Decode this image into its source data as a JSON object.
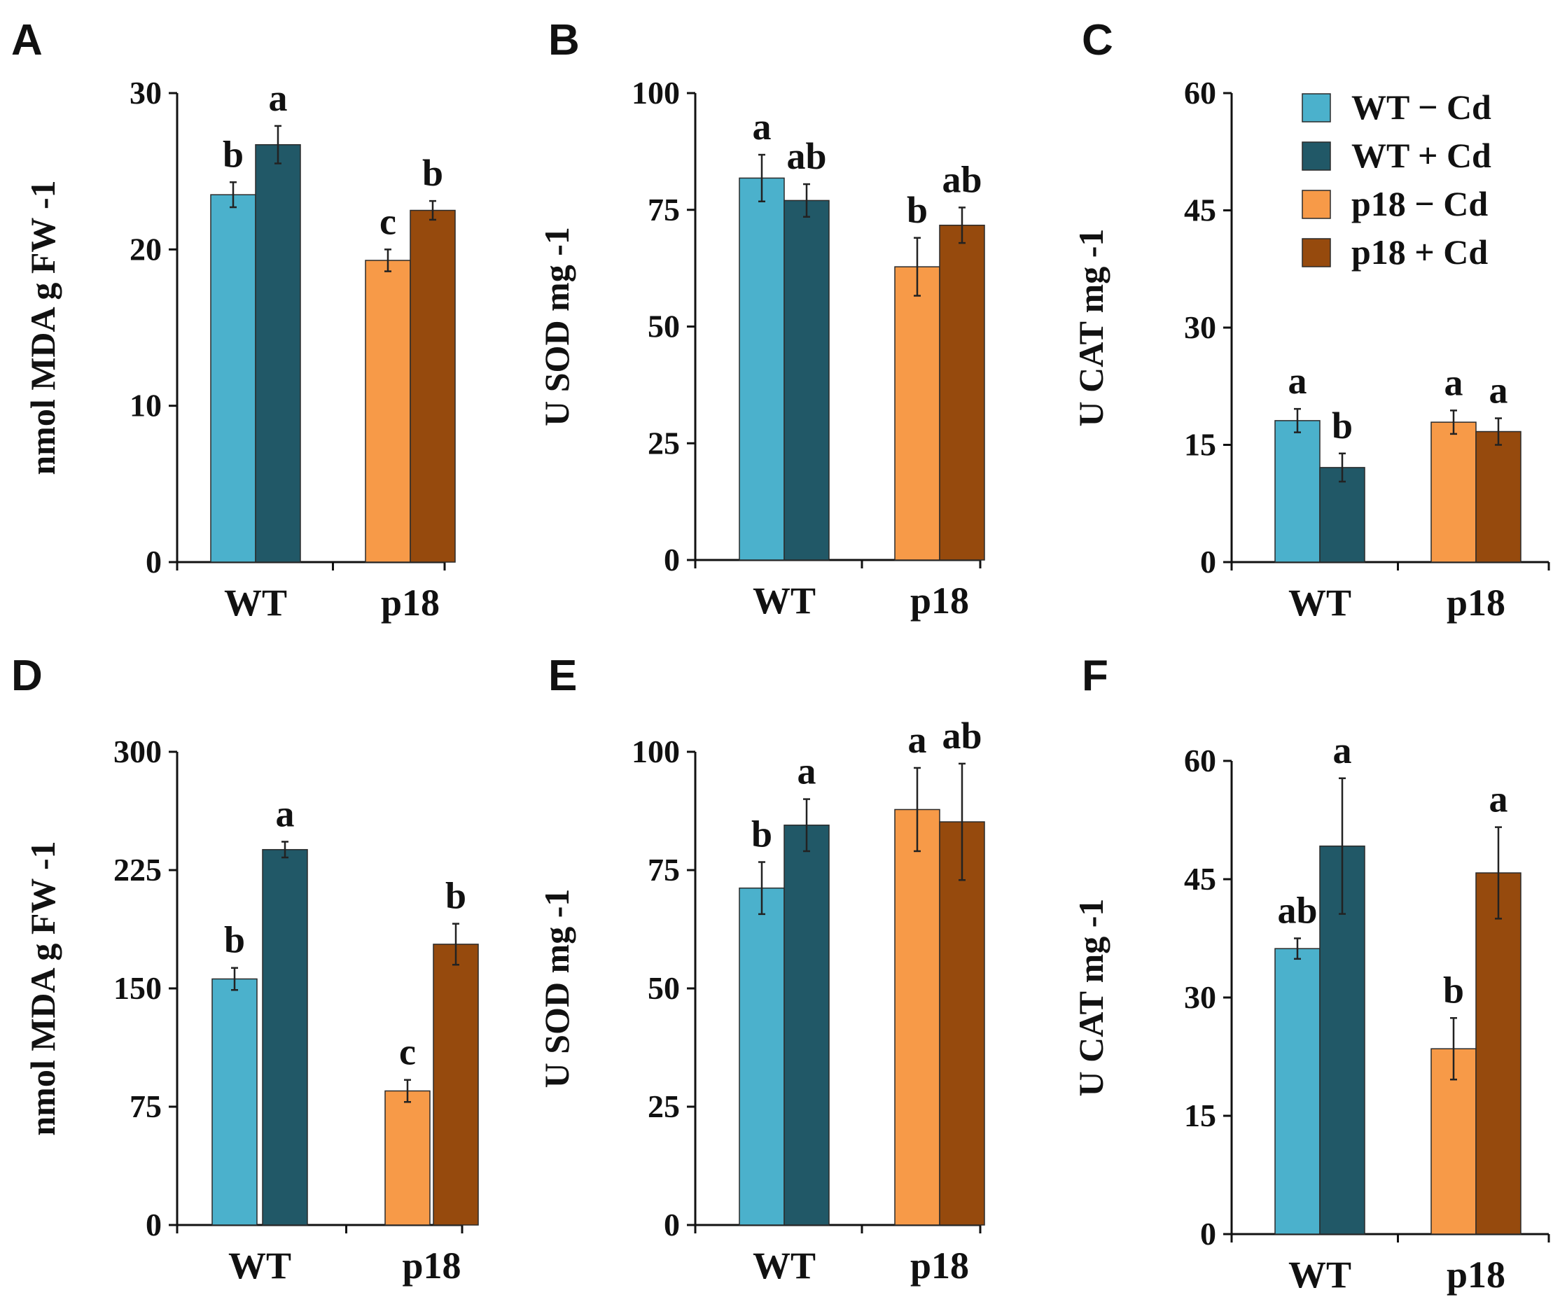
{
  "figure": {
    "type": "multi-panel bar chart"
  },
  "colors": {
    "wt_minus": "#4bb1cc",
    "wt_plus": "#215867",
    "p18_minus": "#f79a48",
    "p18_plus": "#964a0d",
    "axis": "#111111"
  },
  "legend": {
    "items": [
      {
        "label": "WT − Cd",
        "color": "#4bb1cc"
      },
      {
        "label": "WT + Cd",
        "color": "#215867"
      },
      {
        "label": "p18 − Cd",
        "color": "#f79a48"
      },
      {
        "label": "p18 + Cd",
        "color": "#964a0d"
      }
    ]
  },
  "chart_data": [
    {
      "panel": "A",
      "type": "bar",
      "ylabel": "nmol MDA g FW -1",
      "ylim": [
        0,
        30
      ],
      "yticks": [
        0,
        10,
        20,
        30
      ],
      "categories": [
        "WT",
        "p18"
      ],
      "series": [
        {
          "name": "WT − Cd",
          "category": "WT",
          "value": 23.5,
          "error": 0.8,
          "sig": "b"
        },
        {
          "name": "WT + Cd",
          "category": "WT",
          "value": 26.7,
          "error": 1.2,
          "sig": "a"
        },
        {
          "name": "p18 − Cd",
          "category": "p18",
          "value": 19.3,
          "error": 0.7,
          "sig": "c"
        },
        {
          "name": "p18 + Cd",
          "category": "p18",
          "value": 22.5,
          "error": 0.6,
          "sig": "b"
        }
      ]
    },
    {
      "panel": "B",
      "type": "bar",
      "ylabel": "U SOD mg -1",
      "ylim": [
        0,
        100
      ],
      "yticks": [
        0,
        25,
        50,
        75,
        100
      ],
      "categories": [
        "WT",
        "p18"
      ],
      "series": [
        {
          "name": "WT − Cd",
          "category": "WT",
          "value": 81.8,
          "error": 5.0,
          "sig": "a"
        },
        {
          "name": "WT + Cd",
          "category": "WT",
          "value": 77.0,
          "error": 3.5,
          "sig": "ab"
        },
        {
          "name": "p18 − Cd",
          "category": "p18",
          "value": 62.8,
          "error": 6.2,
          "sig": "b"
        },
        {
          "name": "p18 + Cd",
          "category": "p18",
          "value": 71.7,
          "error": 3.8,
          "sig": "ab"
        }
      ]
    },
    {
      "panel": "C",
      "type": "bar",
      "ylabel": "U CAT mg -1",
      "ylim": [
        0,
        60
      ],
      "yticks": [
        0,
        15,
        30,
        45,
        60
      ],
      "categories": [
        "WT",
        "p18"
      ],
      "series": [
        {
          "name": "WT − Cd",
          "category": "WT",
          "value": 18.1,
          "error": 1.5,
          "sig": "a"
        },
        {
          "name": "WT + Cd",
          "category": "WT",
          "value": 12.1,
          "error": 1.8,
          "sig": "b"
        },
        {
          "name": "p18 − Cd",
          "category": "p18",
          "value": 17.9,
          "error": 1.5,
          "sig": "a"
        },
        {
          "name": "p18 + Cd",
          "category": "p18",
          "value": 16.7,
          "error": 1.7,
          "sig": "a"
        }
      ]
    },
    {
      "panel": "D",
      "type": "bar",
      "ylabel": "nmol MDA g FW -1",
      "ylim": [
        0,
        300
      ],
      "yticks": [
        0,
        75,
        150,
        225,
        300
      ],
      "categories": [
        "WT",
        "p18"
      ],
      "series": [
        {
          "name": "WT − Cd",
          "category": "WT",
          "value": 156,
          "error": 7,
          "sig": "b"
        },
        {
          "name": "WT + Cd",
          "category": "WT",
          "value": 238,
          "error": 5,
          "sig": "a"
        },
        {
          "name": "p18 − Cd",
          "category": "p18",
          "value": 85,
          "error": 7,
          "sig": "c"
        },
        {
          "name": "p18 + Cd",
          "category": "p18",
          "value": 178,
          "error": 13,
          "sig": "b"
        }
      ]
    },
    {
      "panel": "E",
      "type": "bar",
      "ylabel": "U SOD mg -1",
      "ylim": [
        0,
        100
      ],
      "yticks": [
        0,
        25,
        50,
        75,
        100
      ],
      "categories": [
        "WT",
        "p18"
      ],
      "series": [
        {
          "name": "WT − Cd",
          "category": "WT",
          "value": 71.2,
          "error": 5.5,
          "sig": "b"
        },
        {
          "name": "WT + Cd",
          "category": "WT",
          "value": 84.5,
          "error": 5.5,
          "sig": "a"
        },
        {
          "name": "p18 − Cd",
          "category": "p18",
          "value": 87.8,
          "error": 8.8,
          "sig": "a"
        },
        {
          "name": "p18 + Cd",
          "category": "p18",
          "value": 85.2,
          "error": 12.3,
          "sig": "ab"
        }
      ]
    },
    {
      "panel": "F",
      "type": "bar",
      "ylabel": "U CAT mg -1",
      "ylim": [
        0,
        60
      ],
      "yticks": [
        0,
        15,
        30,
        45,
        60
      ],
      "categories": [
        "WT",
        "p18"
      ],
      "series": [
        {
          "name": "WT − Cd",
          "category": "WT",
          "value": 36.2,
          "error": 1.3,
          "sig": "ab"
        },
        {
          "name": "WT + Cd",
          "category": "WT",
          "value": 49.2,
          "error": 8.6,
          "sig": "a"
        },
        {
          "name": "p18 − Cd",
          "category": "p18",
          "value": 23.5,
          "error": 3.9,
          "sig": "b"
        },
        {
          "name": "p18 + Cd",
          "category": "p18",
          "value": 45.8,
          "error": 5.8,
          "sig": "a"
        }
      ]
    }
  ]
}
